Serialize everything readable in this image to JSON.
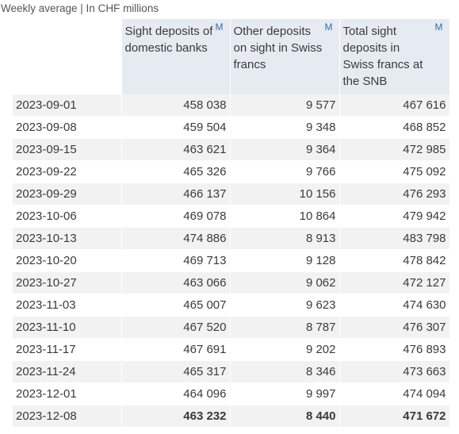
{
  "chart_data": {
    "type": "table",
    "caption": "Weekly average | In CHF millions",
    "columns": [
      {
        "label": "Sight deposits of domestic banks",
        "marker": "M"
      },
      {
        "label": "Other deposits on sight in Swiss francs",
        "marker": "M"
      },
      {
        "label": "Total sight deposits in Swiss francs at the SNB",
        "marker": "M"
      }
    ],
    "rows": [
      {
        "date": "2023-09-01",
        "values": [
          "458 038",
          "9 577",
          "467 616"
        ]
      },
      {
        "date": "2023-09-08",
        "values": [
          "459 504",
          "9 348",
          "468 852"
        ]
      },
      {
        "date": "2023-09-15",
        "values": [
          "463 621",
          "9 364",
          "472 985"
        ]
      },
      {
        "date": "2023-09-22",
        "values": [
          "465 326",
          "9 766",
          "475 092"
        ]
      },
      {
        "date": "2023-09-29",
        "values": [
          "466 137",
          "10 156",
          "476 293"
        ]
      },
      {
        "date": "2023-10-06",
        "values": [
          "469 078",
          "10 864",
          "479 942"
        ]
      },
      {
        "date": "2023-10-13",
        "values": [
          "474 886",
          "8 913",
          "483 798"
        ]
      },
      {
        "date": "2023-10-20",
        "values": [
          "469 713",
          "9 128",
          "478 842"
        ]
      },
      {
        "date": "2023-10-27",
        "values": [
          "463 066",
          "9 062",
          "472 127"
        ]
      },
      {
        "date": "2023-11-03",
        "values": [
          "465 007",
          "9 623",
          "474 630"
        ]
      },
      {
        "date": "2023-11-10",
        "values": [
          "467 520",
          "8 787",
          "476 307"
        ]
      },
      {
        "date": "2023-11-17",
        "values": [
          "467 691",
          "9 202",
          "476 893"
        ]
      },
      {
        "date": "2023-11-24",
        "values": [
          "465 317",
          "8 346",
          "473 663"
        ]
      },
      {
        "date": "2023-12-01",
        "values": [
          "464 096",
          "9 997",
          "474 094"
        ]
      },
      {
        "date": "2023-12-08",
        "values": [
          "463 232",
          "8 440",
          "471 672"
        ]
      }
    ]
  }
}
